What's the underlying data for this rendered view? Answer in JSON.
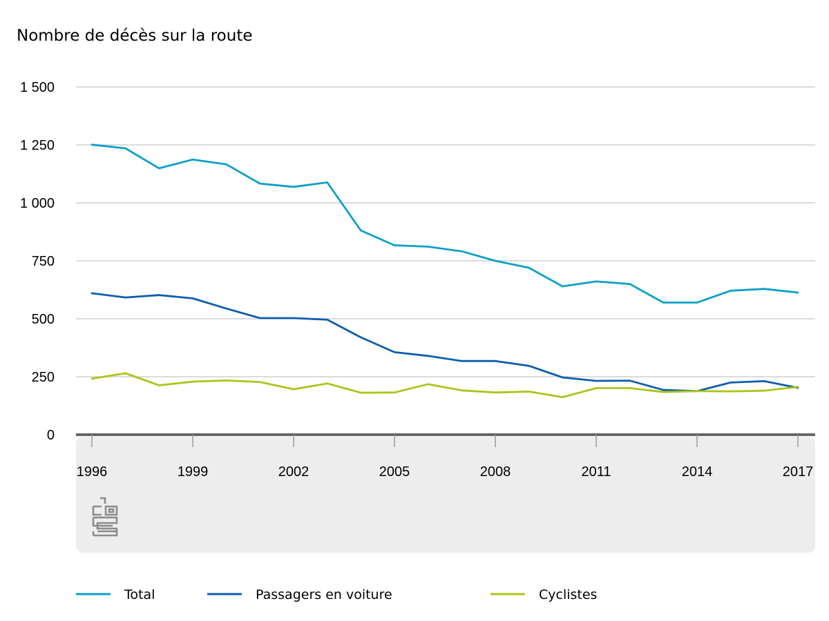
{
  "chart_data": {
    "type": "line",
    "title": "Nombre de décès sur la route",
    "xlabel": "",
    "ylabel": "",
    "x": [
      1996,
      1997,
      1998,
      1999,
      2000,
      2001,
      2002,
      2003,
      2004,
      2005,
      2006,
      2007,
      2008,
      2009,
      2010,
      2011,
      2012,
      2013,
      2014,
      2015,
      2016,
      2017
    ],
    "x_ticks": [
      "1996",
      "1999",
      "2002",
      "2005",
      "2008",
      "2011",
      "2014",
      "2017"
    ],
    "y_ticks": [
      "0",
      "250",
      "500",
      "750",
      "1 000",
      "1 250",
      "1 500"
    ],
    "ylim": [
      0,
      1500
    ],
    "grid": true,
    "legend_position": "bottom",
    "series": [
      {
        "name": "Total",
        "color": "#0ba0c7",
        "values": [
          1251,
          1235,
          1149,
          1187,
          1166,
          1083,
          1069,
          1088,
          881,
          817,
          811,
          791,
          750,
          720,
          640,
          661,
          650,
          570,
          570,
          621,
          629,
          613
        ]
      },
      {
        "name": "Passagers en voiture",
        "color": "#0b5db0",
        "values": [
          610,
          592,
          602,
          588,
          544,
          503,
          503,
          496,
          420,
          356,
          340,
          318,
          318,
          297,
          247,
          232,
          233,
          193,
          188,
          225,
          231,
          202
        ]
      },
      {
        "name": "Cyclistes",
        "color": "#acc419",
        "values": [
          242,
          265,
          213,
          229,
          234,
          227,
          196,
          221,
          181,
          182,
          218,
          191,
          182,
          186,
          162,
          201,
          201,
          184,
          188,
          187,
          190,
          206
        ]
      }
    ]
  }
}
